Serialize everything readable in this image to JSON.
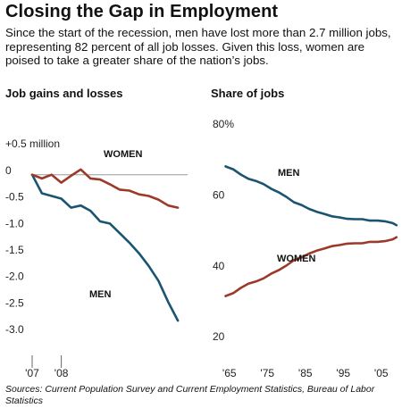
{
  "title": "Closing the Gap in Employment",
  "subtitle": "Since the start of the recession, men have lost more than 2.7 million jobs, representing 82 percent of all job losses. Given this loss, women are poised to take a greater share of the nation’s jobs.",
  "source": "Sources: Current Population Survey and Current Employment Statistics, Bureau of Labor Statistics",
  "colors": {
    "men": "#1a5470",
    "women": "#9b3a2a",
    "axis": "#999999"
  },
  "chart_data": [
    {
      "type": "line",
      "title": "Job gains and losses",
      "ylabel": "",
      "y_unit": "million",
      "ylim": [
        -3.0,
        0.5
      ],
      "y_ticks": [
        {
          "value": 0.5,
          "label": "+0.5 million"
        },
        {
          "value": 0,
          "label": "0"
        },
        {
          "value": -0.5,
          "label": "-0.5"
        },
        {
          "value": -1.0,
          "label": "-1.0"
        },
        {
          "value": -1.5,
          "label": "-1.5"
        },
        {
          "value": -2.0,
          "label": "-2.0"
        },
        {
          "value": -2.5,
          "label": "-2.5"
        },
        {
          "value": -3.0,
          "label": "-3.0"
        }
      ],
      "x_ticks": [
        {
          "value": 0,
          "label": "'07"
        },
        {
          "value": 3,
          "label": "'08"
        }
      ],
      "x_range": [
        0,
        16
      ],
      "series": [
        {
          "name": "MEN",
          "x": [
            0,
            1,
            2,
            3,
            4,
            5,
            6,
            7,
            8,
            9,
            10,
            11,
            12,
            13,
            14,
            15,
            16
          ],
          "values": [
            0,
            -0.35,
            -0.4,
            -0.45,
            -0.62,
            -0.58,
            -0.68,
            -0.88,
            -0.92,
            -1.1,
            -1.28,
            -1.48,
            -1.72,
            -2.0,
            -2.4,
            -2.75,
            null
          ]
        },
        {
          "name": "WOMEN",
          "x": [
            0,
            1,
            2,
            3,
            4,
            5,
            6,
            7,
            8,
            9,
            10,
            11,
            12,
            13,
            14,
            15,
            16
          ],
          "values": [
            0,
            -0.07,
            0.0,
            -0.15,
            -0.02,
            0.1,
            -0.07,
            -0.09,
            -0.18,
            -0.28,
            -0.3,
            -0.37,
            -0.4,
            -0.47,
            -0.58,
            -0.62,
            null
          ]
        }
      ]
    },
    {
      "type": "line",
      "title": "Share of jobs",
      "ylabel": "",
      "y_unit": "%",
      "ylim": [
        20,
        80
      ],
      "y_ticks": [
        {
          "value": 80,
          "label": "80%"
        },
        {
          "value": 60,
          "label": "60"
        },
        {
          "value": 40,
          "label": "40"
        },
        {
          "value": 20,
          "label": "20"
        }
      ],
      "x_ticks": [
        {
          "value": 1965,
          "label": "'65"
        },
        {
          "value": 1975,
          "label": "'75"
        },
        {
          "value": 1985,
          "label": "'85"
        },
        {
          "value": 1995,
          "label": "'95"
        },
        {
          "value": 2005,
          "label": "'05"
        }
      ],
      "x_range": [
        1962,
        2010
      ],
      "series": [
        {
          "name": "MEN",
          "x": [
            1964,
            1966,
            1968,
            1970,
            1972,
            1974,
            1976,
            1978,
            1980,
            1982,
            1984,
            1986,
            1988,
            1990,
            1992,
            1994,
            1996,
            1998,
            2000,
            2002,
            2004,
            2006,
            2008,
            2009
          ],
          "values": [
            68.3,
            67.5,
            66.0,
            64.8,
            64.2,
            63.3,
            62.0,
            61.0,
            59.7,
            58.2,
            57.4,
            56.3,
            55.5,
            54.9,
            54.2,
            53.9,
            53.5,
            53.4,
            53.4,
            53.0,
            53.0,
            52.8,
            52.3,
            51.7
          ]
        },
        {
          "name": "WOMEN",
          "x": [
            1964,
            1966,
            1968,
            1970,
            1972,
            1974,
            1976,
            1978,
            1980,
            1982,
            1984,
            1986,
            1988,
            1990,
            1992,
            1994,
            1996,
            1998,
            2000,
            2002,
            2004,
            2006,
            2008,
            2009
          ],
          "values": [
            31.7,
            32.5,
            34.0,
            35.2,
            35.8,
            36.7,
            38.0,
            39.0,
            40.3,
            41.8,
            42.6,
            43.7,
            44.5,
            45.1,
            45.8,
            46.1,
            46.5,
            46.6,
            46.6,
            47.0,
            47.0,
            47.2,
            47.7,
            48.3
          ]
        }
      ]
    }
  ]
}
